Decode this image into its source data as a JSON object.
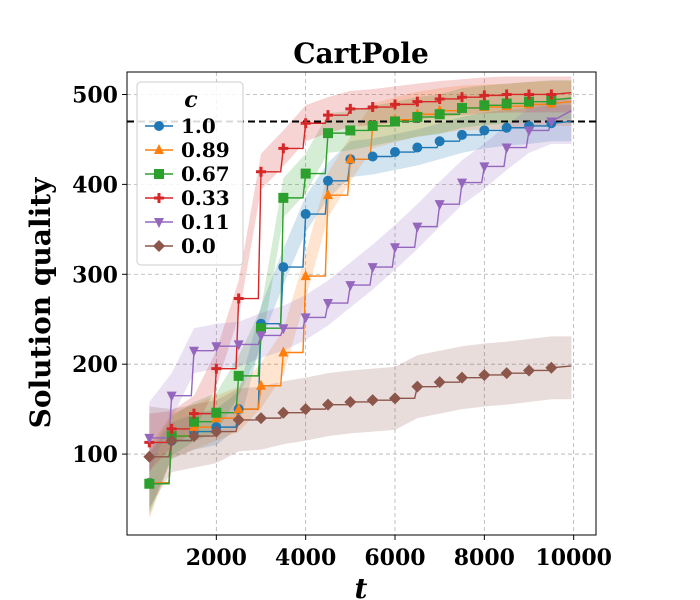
{
  "chart_data": {
    "type": "line",
    "title": "CartPole",
    "xlabel": "t",
    "ylabel": "Solution quality",
    "xlim": [
      0,
      10500
    ],
    "ylim": [
      10,
      525
    ],
    "xticks": [
      2000,
      4000,
      6000,
      8000,
      10000
    ],
    "yticks": [
      100,
      200,
      300,
      400,
      500
    ],
    "grid": true,
    "reference_line": {
      "y": 470,
      "style": "dashed",
      "color": "#000000"
    },
    "legend": {
      "title": "c",
      "placement": "top-left"
    },
    "series": [
      {
        "name": "1.0",
        "color": "#1f77b4",
        "marker": "circle",
        "x": [
          500,
          1000,
          1500,
          2000,
          2500,
          3000,
          3500,
          4000,
          4500,
          5000,
          5500,
          6000,
          6500,
          7000,
          7500,
          8000,
          8500,
          9000,
          9500
        ],
        "y": [
          68,
          115,
          125,
          130,
          150,
          245,
          308,
          367,
          404,
          428,
          431,
          436,
          441,
          448,
          455,
          460,
          463,
          465,
          468
        ],
        "band": 20
      },
      {
        "name": "0.89",
        "color": "#ff7f0e",
        "marker": "triangle-up",
        "x": [
          500,
          1000,
          1500,
          2000,
          2500,
          3000,
          3500,
          4000,
          4500,
          5000,
          5500,
          6000,
          6500,
          7000,
          7500,
          8000,
          8500,
          9000,
          9500
        ],
        "y": [
          68,
          120,
          130,
          140,
          150,
          176,
          213,
          298,
          388,
          428,
          465,
          472,
          478,
          482,
          485,
          486,
          487,
          489,
          490
        ],
        "band": 25
      },
      {
        "name": "0.67",
        "color": "#2ca02c",
        "marker": "square",
        "x": [
          500,
          1000,
          1500,
          2000,
          2500,
          3000,
          3500,
          4000,
          4500,
          5000,
          5500,
          6000,
          6500,
          7000,
          7500,
          8000,
          8500,
          9000,
          9500
        ],
        "y": [
          67,
          120,
          136,
          146,
          187,
          240,
          385,
          412,
          457,
          460,
          465,
          470,
          475,
          478,
          485,
          488,
          490,
          492,
          494
        ],
        "band": 22
      },
      {
        "name": "0.33",
        "color": "#d62728",
        "marker": "plus",
        "x": [
          500,
          1000,
          1500,
          2000,
          2500,
          3000,
          3500,
          4000,
          4500,
          5000,
          5500,
          6000,
          6500,
          7000,
          7500,
          8000,
          8500,
          9000,
          9500
        ],
        "y": [
          113,
          128,
          145,
          195,
          273,
          414,
          440,
          468,
          477,
          484,
          486,
          489,
          492,
          495,
          497,
          499,
          500,
          500,
          500
        ],
        "band": 20
      },
      {
        "name": "0.11",
        "color": "#9467bd",
        "marker": "triangle-down",
        "x": [
          500,
          1000,
          1500,
          2000,
          2500,
          3000,
          3500,
          4000,
          4500,
          5000,
          5500,
          6000,
          6500,
          7000,
          7500,
          8000,
          8500,
          9000,
          9500
        ],
        "y": [
          118,
          165,
          215,
          220,
          222,
          232,
          240,
          252,
          268,
          288,
          308,
          330,
          353,
          378,
          402,
          420,
          441,
          460,
          470
        ],
        "band": 25
      },
      {
        "name": "0.0",
        "color": "#8c564b",
        "marker": "diamond",
        "x": [
          500,
          1000,
          1500,
          2000,
          2500,
          3000,
          3500,
          4000,
          4500,
          5000,
          5500,
          6000,
          6500,
          7000,
          7500,
          8000,
          8500,
          9000,
          9500
        ],
        "y": [
          97,
          115,
          120,
          125,
          138,
          140,
          146,
          150,
          155,
          158,
          160,
          162,
          175,
          180,
          185,
          188,
          190,
          193,
          196
        ],
        "band": 35
      }
    ]
  }
}
